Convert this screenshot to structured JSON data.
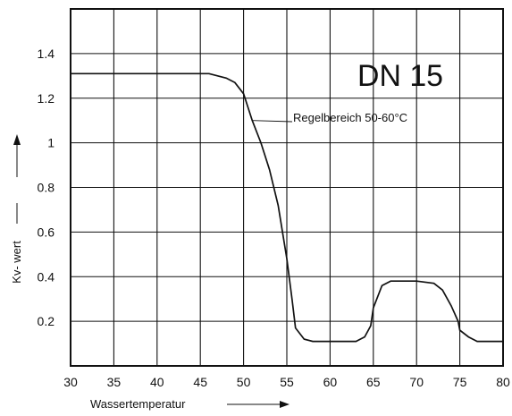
{
  "chart_data": {
    "type": "line",
    "title": "",
    "xlabel": "Wassertemperatur",
    "ylabel": "Kv- wert",
    "xlim": [
      30,
      80
    ],
    "ylim": [
      0,
      1.6
    ],
    "xticks": [
      "30",
      "35",
      "40",
      "45",
      "50",
      "55",
      "60",
      "65",
      "70",
      "75",
      "80"
    ],
    "yticks": [
      "0.2",
      "0.4",
      "0.6",
      "0.8",
      "1",
      "1.2",
      "1.4"
    ],
    "grid": true,
    "box_label": "DN 15",
    "annotation": "Regelbereich 50-60°C",
    "annotation_point": {
      "x": 51,
      "y": 1.1
    },
    "series": [
      {
        "x": [
          30,
          46,
          48,
          49,
          50,
          51,
          52,
          53,
          54,
          55,
          55.6,
          56,
          57,
          58,
          60,
          63,
          64,
          64.7,
          65,
          66,
          67,
          70,
          72,
          73,
          74,
          74.8,
          75,
          76,
          77,
          78,
          80
        ],
        "y": [
          1.31,
          1.31,
          1.29,
          1.27,
          1.22,
          1.1,
          1.0,
          0.88,
          0.72,
          0.48,
          0.3,
          0.17,
          0.12,
          0.11,
          0.11,
          0.11,
          0.13,
          0.18,
          0.26,
          0.36,
          0.38,
          0.38,
          0.37,
          0.34,
          0.27,
          0.2,
          0.16,
          0.13,
          0.11,
          0.11,
          0.11
        ]
      }
    ]
  }
}
